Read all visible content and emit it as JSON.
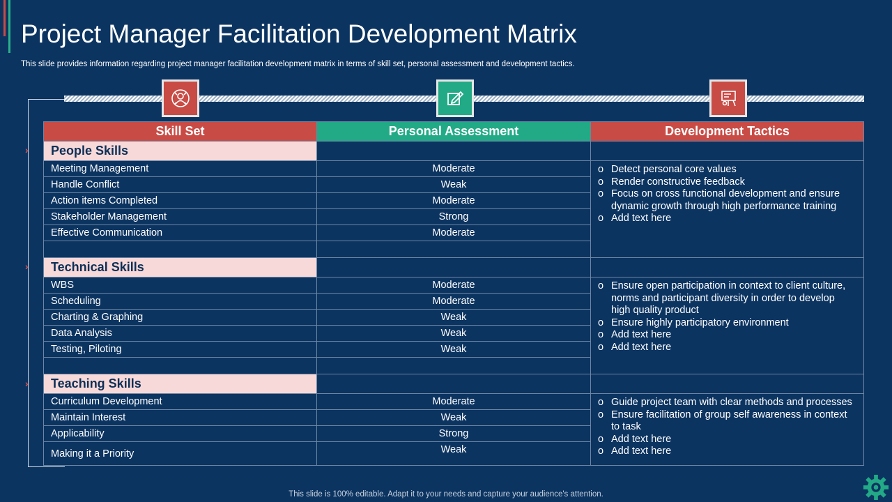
{
  "title": "Project Manager Facilitation Development Matrix",
  "subtitle": "This slide provides information regarding project manager facilitation development matrix in terms of skill set, personal assessment and development tactics.",
  "icons": {
    "skill": "skill-team-icon",
    "assessment": "assessment-edit-icon",
    "tactics": "tactics-presentation-icon",
    "footer": "gear-icon"
  },
  "colors": {
    "background": "#0c3461",
    "red": "#c94b45",
    "green": "#22aa86",
    "category": "#f8d9d9"
  },
  "headers": [
    "Skill Set",
    "Personal Assessment",
    "Development Tactics"
  ],
  "groups": [
    {
      "category": "People Skills",
      "rows": [
        {
          "skill": "Meeting Management",
          "assessment": "Moderate"
        },
        {
          "skill": "Handle Conflict",
          "assessment": "Weak"
        },
        {
          "skill": "Action items Completed",
          "assessment": "Moderate"
        },
        {
          "skill": "Stakeholder Management",
          "assessment": "Strong"
        },
        {
          "skill": "Effective Communication",
          "assessment": "Moderate"
        }
      ],
      "tactics": [
        "Detect personal core values",
        "Render constructive feedback",
        "Focus on cross functional development and ensure dynamic growth through high performance training",
        "Add text here"
      ]
    },
    {
      "category": "Technical Skills",
      "rows": [
        {
          "skill": "WBS",
          "assessment": "Moderate"
        },
        {
          "skill": "Scheduling",
          "assessment": "Moderate"
        },
        {
          "skill": "Charting & Graphing",
          "assessment": "Weak"
        },
        {
          "skill": "Data Analysis",
          "assessment": "Weak"
        },
        {
          "skill": "Testing, Piloting",
          "assessment": "Weak"
        }
      ],
      "tactics": [
        "Ensure open participation in context to client culture, norms and participant diversity in order to develop high quality product",
        "Ensure highly participatory environment",
        "Add text here",
        "Add text here"
      ]
    },
    {
      "category": "Teaching Skills",
      "rows": [
        {
          "skill": "Curriculum Development",
          "assessment": "Moderate"
        },
        {
          "skill": "Maintain Interest",
          "assessment": "Weak"
        },
        {
          "skill": "Applicability",
          "assessment": "Strong"
        },
        {
          "skill": "Making it a Priority",
          "assessment": "Weak"
        }
      ],
      "tactics": [
        "Guide project team with clear methods and processes",
        "Ensure facilitation of group self awareness in context to task",
        "Add text here",
        "Add text here"
      ]
    }
  ],
  "footer": "This slide is 100% editable. Adapt it to your needs and capture your audience's attention."
}
